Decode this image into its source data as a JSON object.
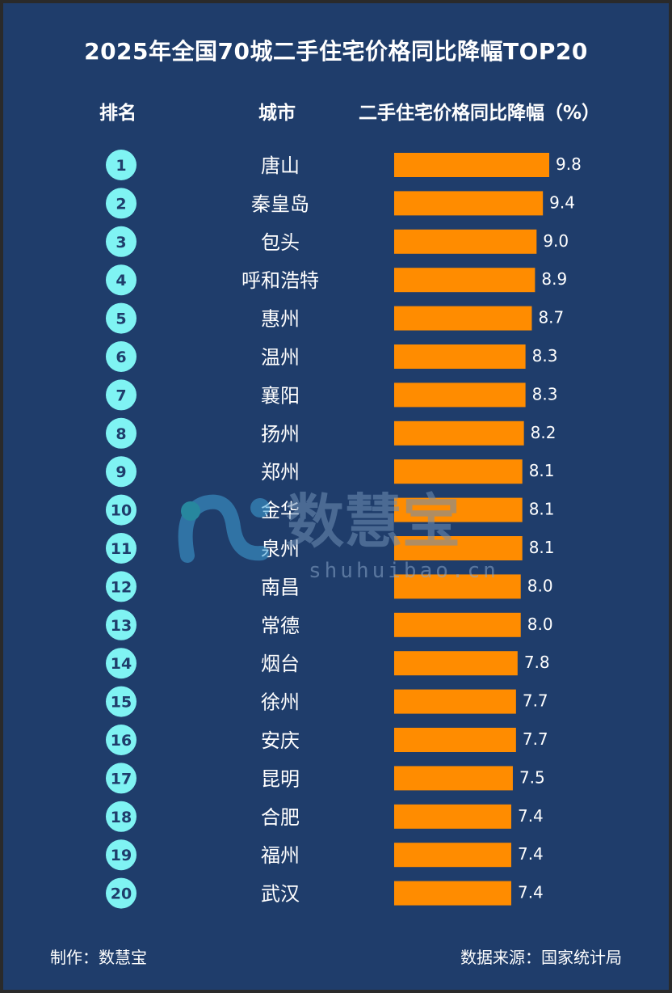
{
  "title": "2025年全国70城二手住宅价格同比降幅TOP20",
  "headers": {
    "rank": "排名",
    "city": "城市",
    "value": "二手住宅价格同比降幅（%）"
  },
  "footer": {
    "left": "制作：数慧宝",
    "right": "数据来源：国家统计局"
  },
  "watermark": {
    "brand": "数慧宝",
    "domain": "shuhuibao.cn"
  },
  "colors": {
    "background": "#1f3d6b",
    "bar": "#ff8c00",
    "rank_badge": "#7ff3f3",
    "rank_text": "#1f3d6b"
  },
  "chart_data": {
    "type": "bar",
    "orientation": "horizontal",
    "title": "2025年全国70城二手住宅价格同比降幅TOP20",
    "ylabel": "二手住宅价格同比降幅（%）",
    "ranks": [
      "1",
      "2",
      "3",
      "4",
      "5",
      "6",
      "7",
      "8",
      "9",
      "10",
      "11",
      "12",
      "13",
      "14",
      "15",
      "16",
      "17",
      "18",
      "19",
      "20"
    ],
    "categories": [
      "唐山",
      "秦皇岛",
      "包头",
      "呼和浩特",
      "惠州",
      "温州",
      "襄阳",
      "扬州",
      "郑州",
      "金华",
      "泉州",
      "南昌",
      "常德",
      "烟台",
      "徐州",
      "安庆",
      "昆明",
      "合肥",
      "福州",
      "武汉"
    ],
    "values": [
      9.8,
      9.4,
      9.0,
      8.9,
      8.7,
      8.3,
      8.3,
      8.2,
      8.1,
      8.1,
      8.1,
      8.0,
      8.0,
      7.8,
      7.7,
      7.7,
      7.5,
      7.4,
      7.4,
      7.4
    ],
    "value_labels": [
      "9.8",
      "9.4",
      "9.0",
      "8.9",
      "8.7",
      "8.3",
      "8.3",
      "8.2",
      "8.1",
      "8.1",
      "8.1",
      "8.0",
      "8.0",
      "7.8",
      "7.7",
      "7.7",
      "7.5",
      "7.4",
      "7.4",
      "7.4"
    ],
    "grid": false,
    "legend": "none"
  }
}
